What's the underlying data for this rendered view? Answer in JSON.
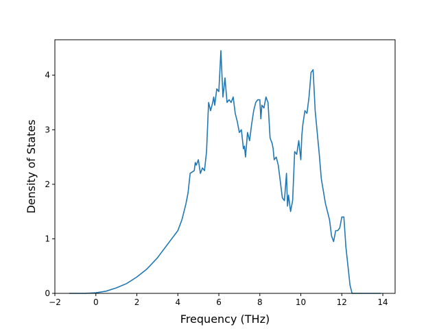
{
  "chart_data": {
    "type": "line",
    "title": "",
    "xlabel": "Frequency (THz)",
    "ylabel": "Density of States",
    "xlim": [
      -2.0,
      14.6
    ],
    "ylim": [
      0,
      4.65
    ],
    "xticks": [
      -2,
      0,
      2,
      4,
      6,
      8,
      10,
      12,
      14
    ],
    "yticks": [
      0,
      1,
      2,
      3,
      4
    ],
    "grid": false,
    "legend": "none",
    "line_color": "#1f77b4",
    "series": [
      {
        "x": [
          -1.3,
          -0.5,
          0,
          0.5,
          1.0,
          1.5,
          2.0,
          2.5,
          3.0,
          3.2,
          3.5,
          3.8,
          4.0,
          4.2,
          4.4,
          4.5,
          4.6,
          4.8,
          4.85,
          4.9,
          5.0,
          5.1,
          5.15,
          5.2,
          5.3,
          5.4,
          5.5,
          5.6,
          5.7,
          5.75,
          5.8,
          5.85,
          5.9,
          6.0,
          6.1,
          6.2,
          6.3,
          6.4,
          6.5,
          6.6,
          6.7,
          6.8,
          6.9,
          7.0,
          7.1,
          7.2,
          7.25,
          7.3,
          7.4,
          7.5,
          7.6,
          7.7,
          7.8,
          7.9,
          8.0,
          8.05,
          8.1,
          8.2,
          8.3,
          8.4,
          8.5,
          8.6,
          8.65,
          8.7,
          8.8,
          8.9,
          9.0,
          9.1,
          9.2,
          9.3,
          9.35,
          9.4,
          9.5,
          9.6,
          9.7,
          9.8,
          9.9,
          10.0,
          10.05,
          10.1,
          10.2,
          10.3,
          10.4,
          10.5,
          10.6,
          10.7,
          10.8,
          10.9,
          11.0,
          11.2,
          11.4,
          11.5,
          11.6,
          11.7,
          11.8,
          11.9,
          12.0,
          12.1,
          12.2,
          12.3,
          12.4,
          12.5,
          12.6,
          12.8,
          13.2,
          13.9
        ],
        "y": [
          0,
          0,
          0.01,
          0.04,
          0.1,
          0.18,
          0.3,
          0.45,
          0.65,
          0.75,
          0.9,
          1.05,
          1.15,
          1.35,
          1.65,
          1.85,
          2.2,
          2.25,
          2.4,
          2.35,
          2.45,
          2.2,
          2.25,
          2.3,
          2.25,
          2.6,
          3.5,
          3.35,
          3.5,
          3.6,
          3.45,
          3.6,
          3.75,
          3.7,
          4.45,
          3.6,
          3.95,
          3.5,
          3.55,
          3.5,
          3.6,
          3.3,
          3.15,
          2.95,
          3.0,
          2.65,
          2.7,
          2.5,
          2.95,
          2.8,
          3.1,
          3.35,
          3.5,
          3.55,
          3.55,
          3.2,
          3.45,
          3.4,
          3.6,
          3.5,
          2.85,
          2.75,
          2.65,
          2.45,
          2.5,
          2.35,
          2.05,
          1.75,
          1.7,
          2.2,
          1.6,
          1.8,
          1.5,
          1.7,
          2.6,
          2.55,
          2.8,
          2.45,
          2.9,
          3.1,
          3.35,
          3.3,
          3.6,
          4.05,
          4.1,
          3.35,
          2.95,
          2.55,
          2.1,
          1.65,
          1.35,
          1.05,
          0.95,
          1.15,
          1.15,
          1.2,
          1.4,
          1.4,
          0.85,
          0.5,
          0.15,
          0,
          0,
          0,
          0,
          0
        ]
      }
    ]
  }
}
